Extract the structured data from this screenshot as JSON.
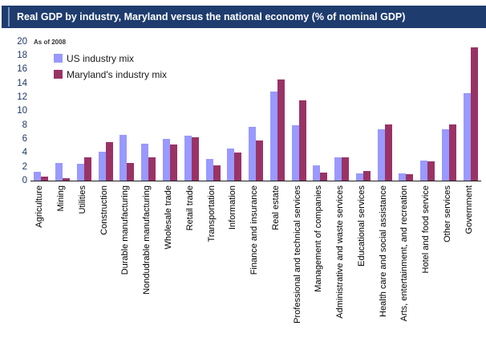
{
  "header": {
    "title": "Real GDP by industry, Maryland versus the national economy (% of nominal GDP)"
  },
  "annotation": "As of 2008",
  "legend": [
    {
      "label": "US industry mix",
      "color": "#9999FF"
    },
    {
      "label": "Maryland's industry mix",
      "color": "#993366"
    }
  ],
  "colors": {
    "title_bar_bg": "#1e3c6e",
    "title_accent": "#7a93c0",
    "title_text": "#ffffff",
    "us_bar": "#9999FF",
    "maryland_bar": "#993366",
    "y_tick_text": "#1f3864",
    "x_label_text": "#000000",
    "axis_line": "#222222"
  },
  "chart_data": {
    "type": "bar",
    "title": "Real GDP by industry, Maryland versus the national economy (% of nominal GDP)",
    "annotation": "As of 2008",
    "categories": [
      "Agriculture",
      "Mining",
      "Utilities",
      "Construction",
      "Durable manufacturing",
      "Nondudrable manufacturing",
      "Wholesale trade",
      "Retail trade",
      "Transportation",
      "Information",
      "Finance and insurance",
      "Real estate",
      "Professional and technical services",
      "Management of companies",
      "Administrative and waste services",
      "Educational services",
      "Health care and social assistance",
      "Arts, entertainment, and recreation",
      "Hotel and food service",
      "Other services",
      "Government"
    ],
    "series": [
      {
        "name": "US industry mix",
        "color": "#9999FF",
        "values": [
          1.3,
          2.6,
          2.4,
          4.2,
          6.6,
          5.3,
          6.0,
          6.5,
          3.1,
          4.6,
          7.7,
          12.8,
          8.0,
          2.2,
          3.3,
          1.0,
          7.4,
          1.0,
          2.9,
          7.4,
          12.6
        ]
      },
      {
        "name": "Maryland's industry mix",
        "color": "#993366",
        "values": [
          0.6,
          0.3,
          3.3,
          5.5,
          2.6,
          3.3,
          5.2,
          6.2,
          2.2,
          4.0,
          5.8,
          14.5,
          11.5,
          1.2,
          3.3,
          1.4,
          8.1,
          0.9,
          2.8,
          8.1,
          19.2
        ]
      }
    ],
    "xlabel": "",
    "ylabel": "",
    "ylim": [
      0,
      20
    ],
    "ytick_step": 2,
    "grid": false,
    "legend_position": "top-left"
  }
}
